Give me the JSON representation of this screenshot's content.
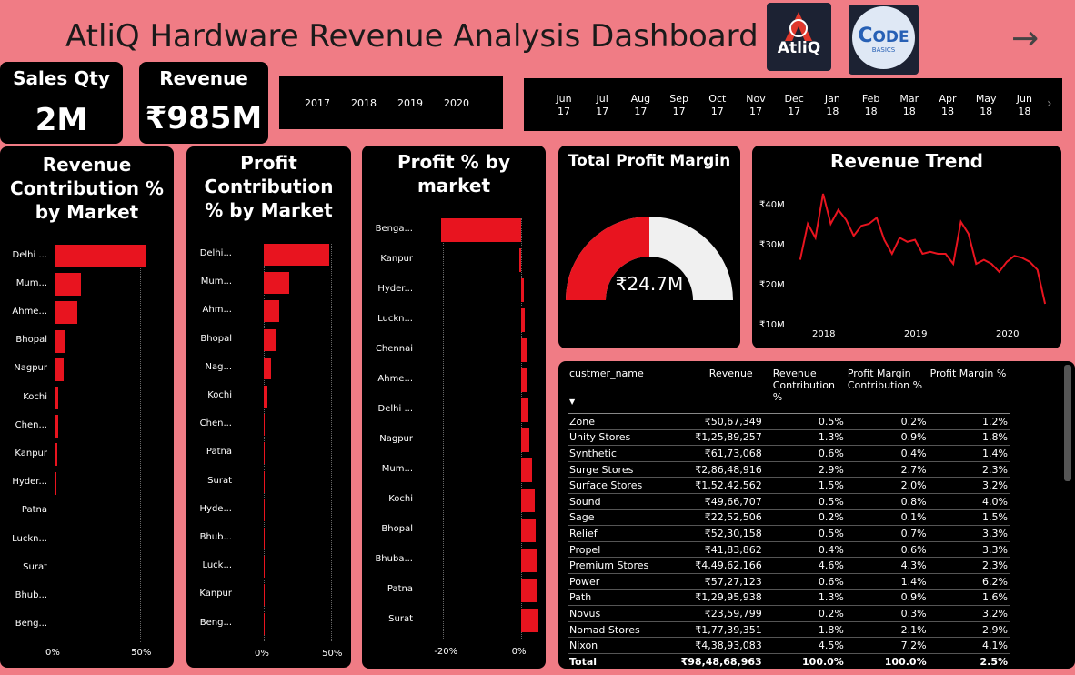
{
  "header": {
    "title": "AtliQ Hardware Revenue Analysis Dashboard",
    "atliq_logo_text": "AtliQ",
    "codebasics_logo_text": "ODE",
    "codebasics_logo_sub": "BASICS",
    "arrow": "→"
  },
  "kpis": {
    "sales_qty": {
      "label": "Sales Qty",
      "value": "2M"
    },
    "revenue": {
      "label": "Revenue",
      "value": "₹985M"
    }
  },
  "year_slicer": [
    "2017",
    "2018",
    "2019",
    "2020"
  ],
  "month_slicer": [
    {
      "m": "Jun",
      "y": "17"
    },
    {
      "m": "Jul",
      "y": "17"
    },
    {
      "m": "Aug",
      "y": "17"
    },
    {
      "m": "Sep",
      "y": "17"
    },
    {
      "m": "Oct",
      "y": "17"
    },
    {
      "m": "Nov",
      "y": "17"
    },
    {
      "m": "Dec",
      "y": "17"
    },
    {
      "m": "Jan",
      "y": "18"
    },
    {
      "m": "Feb",
      "y": "18"
    },
    {
      "m": "Mar",
      "y": "18"
    },
    {
      "m": "Apr",
      "y": "18"
    },
    {
      "m": "May",
      "y": "18"
    },
    {
      "m": "Jun",
      "y": "18"
    }
  ],
  "revenue_contribution": {
    "title": "Revenue Contribution % by Market",
    "ticks": [
      "0%",
      "50%"
    ],
    "markets": [
      "Delhi ...",
      "Mum...",
      "Ahme...",
      "Bhopal",
      "Nagpur",
      "Kochi",
      "Chen...",
      "Kanpur",
      "Hyder...",
      "Patna",
      "Luckn...",
      "Surat",
      "Bhub...",
      "Beng..."
    ],
    "values": [
      53.5,
      15.5,
      13.5,
      6.0,
      5.5,
      2.0,
      2.0,
      1.5,
      1.0,
      0.5,
      0.5,
      0.5,
      0.3,
      0.2
    ]
  },
  "profit_contribution": {
    "title": "Profit Contribution % by Market",
    "ticks": [
      "0%",
      "50%"
    ],
    "markets": [
      "Delhi...",
      "Mum...",
      "Ahm...",
      "Bhopal",
      "Nag...",
      "Kochi",
      "Chen...",
      "Patna",
      "Surat",
      "Hyde...",
      "Bhub...",
      "Luck...",
      "Kanpur",
      "Beng..."
    ],
    "values": [
      48.5,
      19.0,
      11.5,
      9.0,
      5.5,
      3.0,
      1.0,
      0.2,
      0.2,
      0.1,
      0.1,
      0.1,
      0.1,
      0.1
    ]
  },
  "profit_pct_market": {
    "title": "Profit % by market",
    "ticks": [
      "-20%",
      "0%"
    ],
    "markets": [
      "Benga...",
      "Kanpur",
      "Hyder...",
      "Luckn...",
      "Chennai",
      "Ahme...",
      "Delhi ...",
      "Nagpur",
      "Mum...",
      "Kochi",
      "Bhopal",
      "Bhuba...",
      "Patna",
      "Surat"
    ],
    "values": [
      -20.5,
      -0.4,
      0.7,
      1.0,
      1.5,
      1.8,
      2.0,
      2.2,
      3.0,
      3.5,
      3.8,
      4.0,
      4.2,
      4.5
    ]
  },
  "profit_margin_gauge": {
    "title": "Total Profit Margin",
    "value_label": "₹24.7M",
    "fraction": 0.5
  },
  "revenue_trend": {
    "title": "Revenue Trend",
    "y_ticks": [
      "₹40M",
      "₹30M",
      "₹20M",
      "₹10M"
    ],
    "x_ticks": [
      "2018",
      "2019",
      "2020"
    ],
    "color": "#e8141f"
  },
  "chart_data": [
    {
      "type": "bar",
      "title": "Revenue Contribution % by Market",
      "categories": [
        "Delhi ...",
        "Mum...",
        "Ahme...",
        "Bhopal",
        "Nagpur",
        "Kochi",
        "Chen...",
        "Kanpur",
        "Hyder...",
        "Patna",
        "Luckn...",
        "Surat",
        "Bhub...",
        "Beng..."
      ],
      "values": [
        53.5,
        15.5,
        13.5,
        6.0,
        5.5,
        2.0,
        2.0,
        1.5,
        1.0,
        0.5,
        0.5,
        0.5,
        0.3,
        0.2
      ],
      "xlim": [
        0,
        60
      ]
    },
    {
      "type": "bar",
      "title": "Profit Contribution % by Market",
      "categories": [
        "Delhi...",
        "Mum...",
        "Ahm...",
        "Bhopal",
        "Nag...",
        "Kochi",
        "Chen...",
        "Patna",
        "Surat",
        "Hyde...",
        "Bhub...",
        "Luck...",
        "Kanpur",
        "Beng..."
      ],
      "values": [
        48.5,
        19.0,
        11.5,
        9.0,
        5.5,
        3.0,
        1.0,
        0.2,
        0.2,
        0.1,
        0.1,
        0.1,
        0.1,
        0.1
      ],
      "xlim": [
        0,
        60
      ]
    },
    {
      "type": "bar",
      "title": "Profit % by market",
      "categories": [
        "Benga...",
        "Kanpur",
        "Hyder...",
        "Luckn...",
        "Chennai",
        "Ahme...",
        "Delhi ...",
        "Nagpur",
        "Mum...",
        "Kochi",
        "Bhopal",
        "Bhuba...",
        "Patna",
        "Surat"
      ],
      "values": [
        -20.5,
        -0.4,
        0.7,
        1.0,
        1.5,
        1.8,
        2.0,
        2.2,
        3.0,
        3.5,
        3.8,
        4.0,
        4.2,
        4.5
      ],
      "xlim": [
        -25,
        5
      ]
    },
    {
      "type": "line",
      "title": "Revenue Trend",
      "x": [
        "2017-10",
        "2017-11",
        "2017-12",
        "2018-01",
        "2018-02",
        "2018-03",
        "2018-04",
        "2018-05",
        "2018-06",
        "2018-07",
        "2018-08",
        "2018-09",
        "2018-10",
        "2018-11",
        "2018-12",
        "2019-01",
        "2019-02",
        "2019-03",
        "2019-04",
        "2019-05",
        "2019-06",
        "2019-07",
        "2019-08",
        "2019-09",
        "2019-10",
        "2019-11",
        "2019-12",
        "2020-01",
        "2020-02",
        "2020-03",
        "2020-04",
        "2020-05",
        "2020-06"
      ],
      "y": [
        26,
        35,
        31.5,
        42.5,
        35,
        38.5,
        36,
        32,
        34.5,
        35,
        36.5,
        31,
        27.5,
        31.5,
        30.5,
        31,
        27.5,
        28,
        27.5,
        27.5,
        25,
        35.5,
        32.5,
        25,
        26,
        25,
        23,
        25.5,
        27,
        26.5,
        25.5,
        23.5,
        15
      ],
      "ylim": [
        10,
        45
      ]
    }
  ],
  "table": {
    "columns": [
      "custmer_name",
      "Revenue",
      "Revenue Contribution %",
      "Profit Margin Contribution %",
      "Profit Margin %"
    ],
    "rows": [
      [
        "Zone",
        "₹50,67,349",
        "0.5%",
        "0.2%",
        "1.2%"
      ],
      [
        "Unity Stores",
        "₹1,25,89,257",
        "1.3%",
        "0.9%",
        "1.8%"
      ],
      [
        "Synthetic",
        "₹61,73,068",
        "0.6%",
        "0.4%",
        "1.4%"
      ],
      [
        "Surge Stores",
        "₹2,86,48,916",
        "2.9%",
        "2.7%",
        "2.3%"
      ],
      [
        "Surface Stores",
        "₹1,52,42,562",
        "1.5%",
        "2.0%",
        "3.2%"
      ],
      [
        "Sound",
        "₹49,66,707",
        "0.5%",
        "0.8%",
        "4.0%"
      ],
      [
        "Sage",
        "₹22,52,506",
        "0.2%",
        "0.1%",
        "1.5%"
      ],
      [
        "Relief",
        "₹52,30,158",
        "0.5%",
        "0.7%",
        "3.3%"
      ],
      [
        "Propel",
        "₹41,83,862",
        "0.4%",
        "0.6%",
        "3.3%"
      ],
      [
        "Premium Stores",
        "₹4,49,62,166",
        "4.6%",
        "4.3%",
        "2.3%"
      ],
      [
        "Power",
        "₹57,27,123",
        "0.6%",
        "1.4%",
        "6.2%"
      ],
      [
        "Path",
        "₹1,29,95,938",
        "1.3%",
        "0.9%",
        "1.6%"
      ],
      [
        "Novus",
        "₹23,59,799",
        "0.2%",
        "0.3%",
        "3.2%"
      ],
      [
        "Nomad Stores",
        "₹1,77,39,351",
        "1.8%",
        "2.1%",
        "2.9%"
      ],
      [
        "Nixon",
        "₹4,38,93,083",
        "4.5%",
        "7.2%",
        "4.1%"
      ]
    ],
    "total": [
      "Total",
      "₹98,48,68,963",
      "100.0%",
      "100.0%",
      "2.5%"
    ]
  }
}
